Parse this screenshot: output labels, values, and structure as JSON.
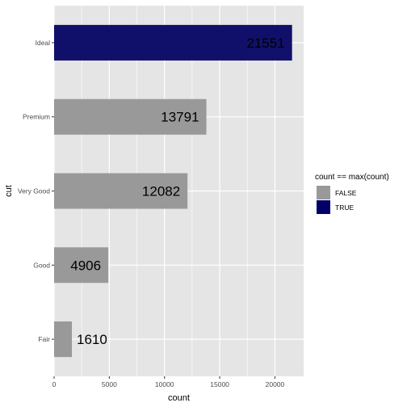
{
  "chart_data": {
    "type": "bar",
    "orientation": "horizontal",
    "xlabel": "count",
    "ylabel": "cut",
    "categories": [
      "Ideal",
      "Premium",
      "Very Good",
      "Good",
      "Fair"
    ],
    "values": [
      21551,
      13791,
      12082,
      4906,
      1610
    ],
    "is_max": [
      true,
      false,
      false,
      false,
      false
    ],
    "xlim": [
      0,
      22600
    ],
    "x_ticks": [
      0,
      5000,
      10000,
      15000,
      20000
    ],
    "grid": true,
    "legend": {
      "title": "count == max(count)",
      "position": "right",
      "entries": [
        {
          "label": "FALSE",
          "color": "#999999"
        },
        {
          "label": "TRUE",
          "color": "#000066"
        }
      ]
    },
    "colors": {
      "panel": "#e5e5e5",
      "grid": "#ffffff",
      "false_fill": "#999999",
      "true_fill": "#10106b"
    }
  }
}
